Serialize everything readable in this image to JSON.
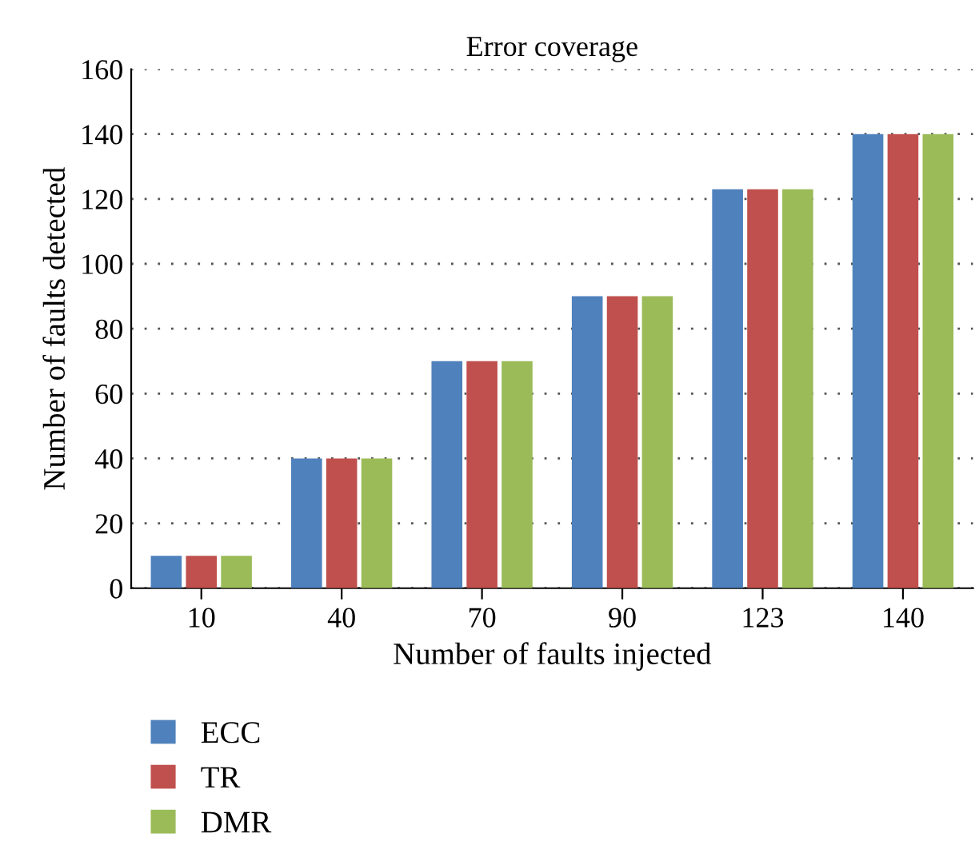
{
  "chart_data": {
    "type": "bar",
    "title": "Error coverage",
    "xlabel": "Number of faults injected",
    "ylabel": "Number of faults detected",
    "categories": [
      "10",
      "40",
      "70",
      "90",
      "123",
      "140"
    ],
    "series": [
      {
        "name": "ECC",
        "color": "#4f81bd",
        "values": [
          10,
          40,
          70,
          90,
          123,
          140
        ]
      },
      {
        "name": "TR",
        "color": "#c0504d",
        "values": [
          10,
          40,
          70,
          90,
          123,
          140
        ]
      },
      {
        "name": "DMR",
        "color": "#9bbb59",
        "values": [
          10,
          40,
          70,
          90,
          123,
          140
        ]
      }
    ],
    "ylim": [
      0,
      160
    ],
    "yticks": [
      0,
      20,
      40,
      60,
      80,
      100,
      120,
      140,
      160
    ],
    "grid": "y",
    "legend": "bottom left"
  }
}
